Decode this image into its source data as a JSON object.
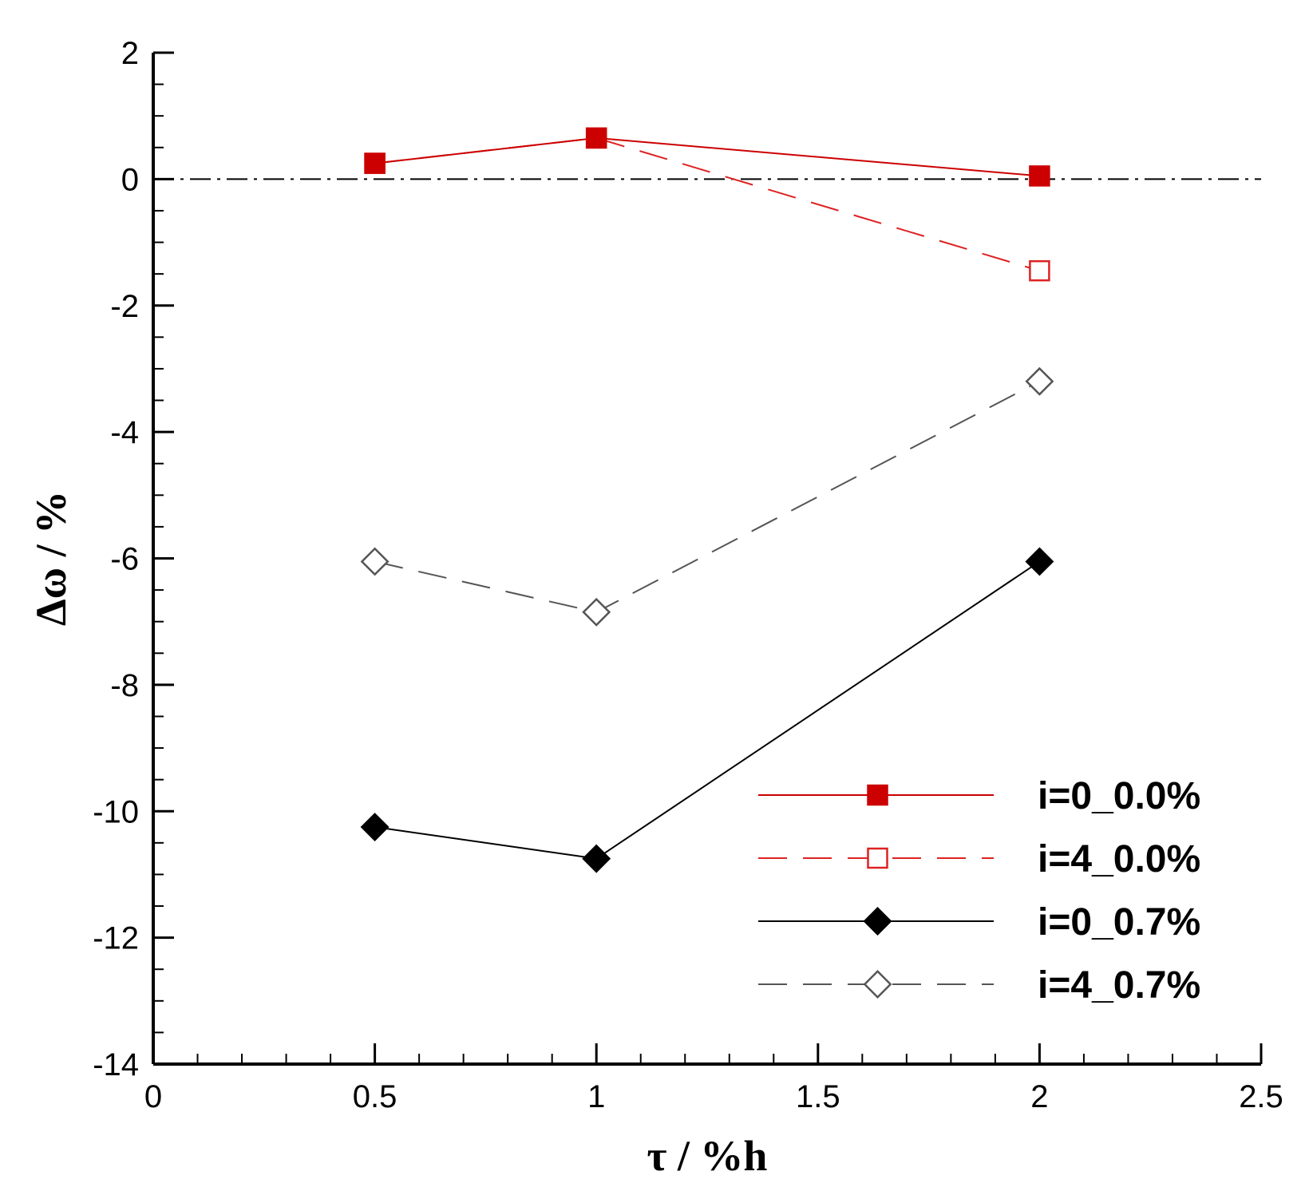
{
  "chart_data": {
    "type": "line",
    "title": "",
    "xlabel": "τ / %h",
    "ylabel": "Δω / %",
    "xlim": [
      0,
      2.5
    ],
    "ylim": [
      -14,
      2
    ],
    "xticks": [
      0,
      0.5,
      1,
      1.5,
      2,
      2.5
    ],
    "xtick_labels": [
      "0",
      "0.5",
      "1",
      "1.5",
      "2",
      "2.5"
    ],
    "yticks": [
      2,
      0,
      -2,
      -4,
      -6,
      -8,
      -10,
      -12,
      -14
    ],
    "ytick_labels": [
      "2",
      "0",
      "-2",
      "-4",
      "-6",
      "-8",
      "-10",
      "-12",
      "-14"
    ],
    "x_minor_step": 0.1,
    "y_minor_step": 0.5,
    "reference_line": {
      "y": 0,
      "style": "dash-dot",
      "color": "#000000"
    },
    "grid": false,
    "legend_position": "bottom-right",
    "series": [
      {
        "name": "i=0_0.0%",
        "x": [
          0.5,
          1,
          2
        ],
        "y": [
          0.25,
          0.65,
          0.05
        ],
        "color": "#cc0000",
        "line": "solid",
        "marker": "square",
        "filled": true
      },
      {
        "name": "i=4_0.0%",
        "x": [
          0.5,
          1,
          2
        ],
        "y": [
          0.25,
          0.65,
          -1.45
        ],
        "color": "#dd2222",
        "line": "dashed",
        "marker": "square",
        "filled": false
      },
      {
        "name": "i=0_0.7%",
        "x": [
          0.5,
          1,
          2
        ],
        "y": [
          -10.25,
          -10.75,
          -6.05
        ],
        "color": "#000000",
        "line": "solid",
        "marker": "diamond",
        "filled": true
      },
      {
        "name": "i=4_0.7%",
        "x": [
          0.5,
          1,
          2
        ],
        "y": [
          -6.05,
          -6.85,
          -3.2
        ],
        "color": "#555555",
        "line": "dashed",
        "marker": "diamond",
        "filled": false
      }
    ]
  }
}
